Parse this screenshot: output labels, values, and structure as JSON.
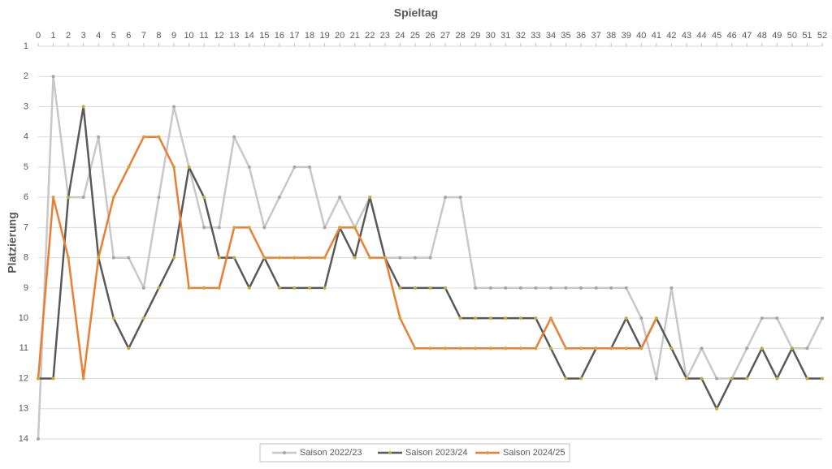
{
  "chart_data": {
    "type": "line",
    "title": "Spieltag",
    "y_label": "Platzierung",
    "x": [
      0,
      1,
      2,
      3,
      4,
      5,
      6,
      7,
      8,
      9,
      10,
      11,
      12,
      13,
      14,
      15,
      16,
      17,
      18,
      19,
      20,
      21,
      22,
      23,
      24,
      25,
      26,
      27,
      28,
      29,
      30,
      31,
      32,
      33,
      34,
      35,
      36,
      37,
      38,
      39,
      40,
      41,
      42,
      43,
      44,
      45,
      46,
      47,
      48,
      49,
      50,
      51,
      52
    ],
    "xlim": [
      0,
      52
    ],
    "xticks": [
      0,
      1,
      2,
      3,
      4,
      5,
      6,
      7,
      8,
      9,
      10,
      11,
      12,
      13,
      14,
      15,
      16,
      17,
      18,
      19,
      20,
      21,
      22,
      23,
      24,
      25,
      26,
      27,
      28,
      29,
      30,
      31,
      32,
      33,
      34,
      35,
      36,
      37,
      38,
      39,
      40,
      41,
      42,
      43,
      44,
      45,
      46,
      47,
      48,
      49,
      50,
      51,
      52
    ],
    "x_axis_position": "top",
    "ylim": [
      1,
      14
    ],
    "y_reversed": true,
    "yticks": [
      1,
      2,
      3,
      4,
      5,
      6,
      7,
      8,
      9,
      10,
      11,
      12,
      13,
      14
    ],
    "grid": true,
    "legend": "bottom",
    "series": [
      {
        "name": "Saison 2022/23",
        "color": "#c8c8c8",
        "marker_color": "#a6a6a6",
        "values": [
          14,
          2,
          6,
          6,
          4,
          8,
          8,
          9,
          6,
          3,
          5,
          7,
          7,
          4,
          5,
          7,
          6,
          5,
          5,
          7,
          6,
          7,
          6,
          8,
          8,
          8,
          8,
          6,
          6,
          9,
          9,
          9,
          9,
          9,
          9,
          9,
          9,
          9,
          9,
          9,
          10,
          12,
          9,
          12,
          11,
          12,
          12,
          11,
          10,
          10,
          11,
          11,
          10
        ]
      },
      {
        "name": "Saison 2023/24",
        "color": "#595959",
        "marker_color": "#c9a83a",
        "values": [
          12,
          12,
          6,
          3,
          8,
          10,
          11,
          10,
          9,
          8,
          5,
          6,
          8,
          8,
          9,
          8,
          9,
          9,
          9,
          9,
          7,
          8,
          6,
          8,
          9,
          9,
          9,
          9,
          10,
          10,
          10,
          10,
          10,
          10,
          11,
          12,
          12,
          11,
          11,
          10,
          11,
          10,
          11,
          12,
          12,
          13,
          12,
          12,
          11,
          12,
          11,
          12,
          12
        ]
      },
      {
        "name": "Saison 2024/25",
        "color": "#ed7d31",
        "marker_color": "#c9a83a",
        "values": [
          12,
          6,
          8,
          12,
          8,
          6,
          5,
          4,
          4,
          5,
          9,
          9,
          9,
          7,
          7,
          8,
          8,
          8,
          8,
          8,
          7,
          7,
          8,
          8,
          10,
          11,
          11,
          11,
          11,
          11,
          11,
          11,
          11,
          11,
          10,
          11,
          11,
          11,
          11,
          11,
          11,
          10,
          null,
          null,
          null,
          null,
          null,
          null,
          null,
          null,
          null,
          null,
          null
        ]
      }
    ]
  }
}
